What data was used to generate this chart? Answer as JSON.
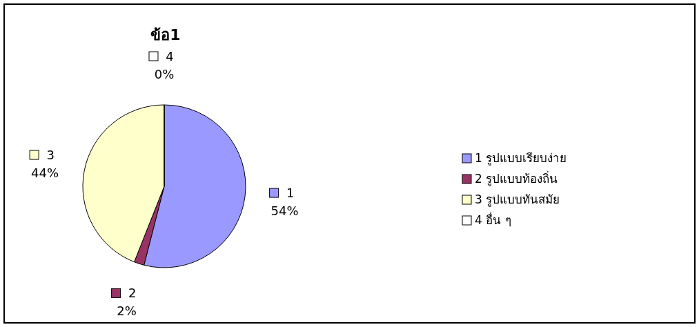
{
  "chart_data": {
    "type": "pie",
    "title": "ข้อ1",
    "categories": [
      "1 รูปแบบเรียบง่าย",
      "2 รูปแบบท้องถิ่น",
      "3 รูปแบบทันสมัย",
      "4 อื่น ๆ"
    ],
    "values": [
      54,
      2,
      44,
      0
    ],
    "colors": [
      "#9999ff",
      "#993366",
      "#ffffcc",
      "#ffffff"
    ],
    "value_labels": [
      "1\n54%",
      "2\n2%",
      "3\n44%",
      "4\n0%"
    ],
    "legend": "right"
  }
}
